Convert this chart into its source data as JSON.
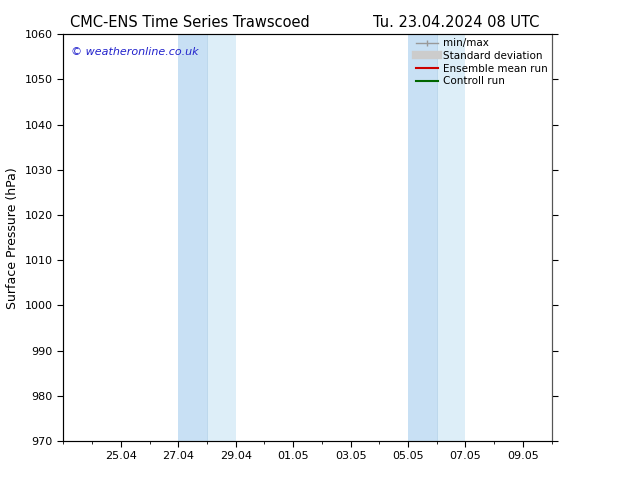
{
  "title_left": "CMC-ENS Time Series Trawscoed",
  "title_right": "Tu. 23.04.2024 08 UTC",
  "ylabel": "Surface Pressure (hPa)",
  "ylim": [
    970,
    1060
  ],
  "yticks": [
    970,
    980,
    990,
    1000,
    1010,
    1020,
    1030,
    1040,
    1050,
    1060
  ],
  "xtick_labels": [
    "25.04",
    "27.04",
    "29.04",
    "01.05",
    "03.05",
    "05.05",
    "07.05",
    "09.05"
  ],
  "xlim": [
    0,
    17
  ],
  "xtick_positions": [
    2,
    4,
    6,
    8,
    10,
    12,
    14,
    16
  ],
  "minor_xtick_positions": [
    0,
    1,
    2,
    3,
    4,
    5,
    6,
    7,
    8,
    9,
    10,
    11,
    12,
    13,
    14,
    15,
    16,
    17
  ],
  "shade_bands": [
    {
      "start": 4,
      "mid": 5,
      "end": 6
    },
    {
      "start": 12,
      "mid": 13,
      "end": 14
    }
  ],
  "shade_color_light": "#ddeef8",
  "shade_color_mid": "#c8e0f4",
  "shade_divider_color": "#b0cfe8",
  "watermark_text": "© weatheronline.co.uk",
  "watermark_color": "#2222cc",
  "background_color": "#ffffff",
  "axes_bg_color": "#ffffff",
  "legend_labels": [
    "min/max",
    "Standard deviation",
    "Ensemble mean run",
    "Controll run"
  ],
  "legend_colors": [
    "#999999",
    "#cccccc",
    "#cc0000",
    "#006600"
  ],
  "legend_lws": [
    1.0,
    6,
    1.5,
    1.5
  ],
  "grid_color": "#cccccc",
  "spine_color": "#555555",
  "tick_color": "#000000",
  "font_color": "#000000",
  "title_fontsize": 10.5,
  "axis_label_fontsize": 9,
  "tick_fontsize": 8,
  "legend_fontsize": 7.5
}
